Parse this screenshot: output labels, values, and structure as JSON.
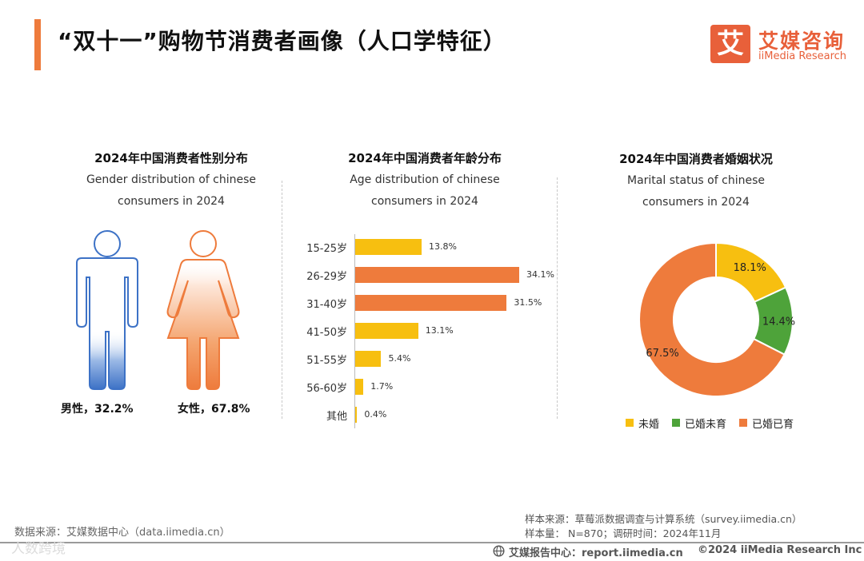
{
  "header": {
    "title": "“双十一”购物节消费者画像（人口学特征）",
    "logo_glyph": "艾",
    "logo_cn": "艾媒咨询",
    "logo_en": "iiMedia Research",
    "accent_color": "#ee7b3c",
    "brand_color": "#e8603a"
  },
  "gender_panel": {
    "title": "2024年中国消费者性别分布",
    "subtitle_line1": "Gender distribution of chinese",
    "subtitle_line2": "consumers in 2024",
    "male_label": "男性，32.2%",
    "female_label": "女性，67.8%",
    "male_icon": "male-figure-icon",
    "female_icon": "female-figure-icon",
    "male_color": "#3d72c6",
    "female_color": "#ee7b3c"
  },
  "age_panel": {
    "title": "2024年中国消费者年龄分布",
    "subtitle_line1": "Age distribution of chinese",
    "subtitle_line2": "consumers in 2024"
  },
  "marital_panel": {
    "title": "2024年中国消费者婚姻状况",
    "subtitle_line1": "Marital status of chinese",
    "subtitle_line2": "consumers in 2024"
  },
  "chart_data": [
    {
      "type": "pie",
      "title": "2024年中国消费者性别分布",
      "categories": [
        "男性",
        "女性"
      ],
      "values": [
        32.2,
        67.8
      ],
      "unit": "%"
    },
    {
      "type": "bar",
      "orientation": "horizontal",
      "title": "2024年中国消费者年龄分布",
      "categories": [
        "15-25岁",
        "26-29岁",
        "31-40岁",
        "41-50岁",
        "51-55岁",
        "56-60岁",
        "其他"
      ],
      "values": [
        13.8,
        34.1,
        31.5,
        13.1,
        5.4,
        1.7,
        0.4
      ],
      "labels": [
        "13.8%",
        "34.1%",
        "31.5%",
        "13.1%",
        "5.4%",
        "1.7%",
        "0.4%"
      ],
      "colors": [
        "#f7bf10",
        "#ee7b3c",
        "#ee7b3c",
        "#f7bf10",
        "#f7bf10",
        "#f7bf10",
        "#f7bf10"
      ],
      "xlim": [
        0,
        34.1
      ]
    },
    {
      "type": "pie",
      "style": "donut",
      "title": "2024年中国消费者婚姻状况",
      "categories": [
        "未婚",
        "已婚未育",
        "已婚已育"
      ],
      "values": [
        18.1,
        14.4,
        67.5
      ],
      "labels": [
        "18.1%",
        "14.4%",
        "67.5%"
      ],
      "colors": [
        "#f7bf10",
        "#4ea33a",
        "#ee7b3c"
      ],
      "legend": "bottom"
    }
  ],
  "footer": {
    "data_source": "数据来源：艾媒数据中心（data.iimedia.cn）",
    "sample_source": "样本来源：草莓派数据调查与计算系统（survey.iimedia.cn）",
    "sample_size": "样本量： N=870；调研时间：2024年11月",
    "report_center": "艾媒报告中心：report.iimedia.cn",
    "copyright": "©2024  iiMedia Research  Inc",
    "watermark": "人数跨境"
  }
}
